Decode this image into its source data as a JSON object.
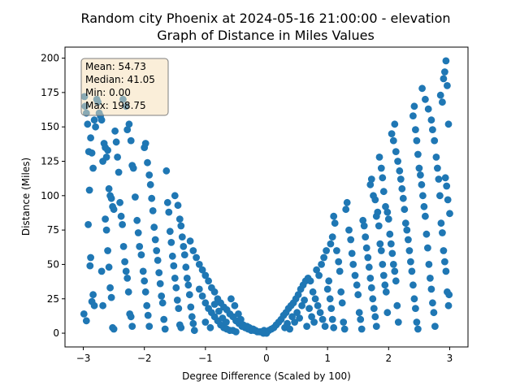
{
  "chart_data": {
    "type": "scatter",
    "title_line1": "Random city Phoenix at 2024-05-16 21:00:00  - elevation",
    "title_line2": "Graph of Distance in Miles Values",
    "xlabel": "Degree Difference (Scaled by 100)",
    "ylabel": "Distance (Miles)",
    "xlim": [
      -3.3,
      3.3
    ],
    "ylim": [
      -10,
      208
    ],
    "xticks": [
      -3,
      -2,
      -1,
      0,
      1,
      2,
      3
    ],
    "yticks": [
      0,
      25,
      50,
      75,
      100,
      125,
      150,
      175,
      200
    ],
    "grid": false,
    "marker_color": "#1f77b4",
    "stats_box": {
      "placement": "top-left",
      "lines": [
        "Mean: 54.73",
        "Median: 41.05",
        "Min: 0.00",
        "Max: 198.75"
      ],
      "background": "#f5deb3",
      "border": "#7f7f7f"
    },
    "points": [
      [
        -2.98,
        172
      ],
      [
        -2.97,
        165
      ],
      [
        -2.95,
        160
      ],
      [
        -2.93,
        152
      ],
      [
        -2.91,
        132
      ],
      [
        -2.88,
        142
      ],
      [
        -2.86,
        131
      ],
      [
        -2.84,
        120
      ],
      [
        -2.82,
        155
      ],
      [
        -2.8,
        150
      ],
      [
        -2.78,
        170
      ],
      [
        -2.76,
        168
      ],
      [
        -2.74,
        160
      ],
      [
        -2.72,
        158
      ],
      [
        -2.7,
        155
      ],
      [
        -2.68,
        125
      ],
      [
        -2.66,
        138
      ],
      [
        -2.64,
        135
      ],
      [
        -2.62,
        128
      ],
      [
        -2.6,
        133
      ],
      [
        -2.58,
        105
      ],
      [
        -2.56,
        100
      ],
      [
        -2.54,
        98
      ],
      [
        -2.52,
        92
      ],
      [
        -2.5,
        90
      ],
      [
        -2.9,
        104
      ],
      [
        -2.92,
        79
      ],
      [
        -2.88,
        55
      ],
      [
        -2.89,
        49
      ],
      [
        -2.86,
        23
      ],
      [
        -2.84,
        28
      ],
      [
        -2.82,
        20
      ],
      [
        -2.99,
        14
      ],
      [
        -2.95,
        9
      ],
      [
        -2.7,
        45
      ],
      [
        -2.68,
        20
      ],
      [
        -2.64,
        83
      ],
      [
        -2.62,
        75
      ],
      [
        -2.6,
        60
      ],
      [
        -2.58,
        48
      ],
      [
        -2.56,
        33
      ],
      [
        -2.54,
        26
      ],
      [
        -2.52,
        4
      ],
      [
        -2.5,
        3
      ],
      [
        -2.48,
        147
      ],
      [
        -2.46,
        139
      ],
      [
        -2.44,
        128
      ],
      [
        -2.42,
        117
      ],
      [
        -2.4,
        95
      ],
      [
        -2.38,
        85
      ],
      [
        -2.36,
        79
      ],
      [
        -2.34,
        63
      ],
      [
        -2.32,
        52
      ],
      [
        -2.3,
        45
      ],
      [
        -2.28,
        40
      ],
      [
        -2.26,
        30
      ],
      [
        -2.24,
        14
      ],
      [
        -2.22,
        12
      ],
      [
        -2.2,
        5
      ],
      [
        -2.3,
        165
      ],
      [
        -2.35,
        170
      ],
      [
        -2.28,
        148
      ],
      [
        -2.25,
        152
      ],
      [
        -2.22,
        140
      ],
      [
        -2.2,
        122
      ],
      [
        -2.18,
        120
      ],
      [
        -2.15,
        99
      ],
      [
        -2.12,
        82
      ],
      [
        -2.1,
        73
      ],
      [
        -2.08,
        63
      ],
      [
        -2.05,
        57
      ],
      [
        -2.02,
        45
      ],
      [
        -2.0,
        38
      ],
      [
        -1.98,
        30
      ],
      [
        -1.96,
        20
      ],
      [
        -1.94,
        13
      ],
      [
        -1.92,
        5
      ],
      [
        -2.0,
        135
      ],
      [
        -1.98,
        138
      ],
      [
        -1.95,
        124
      ],
      [
        -1.92,
        115
      ],
      [
        -1.9,
        108
      ],
      [
        -1.88,
        98
      ],
      [
        -1.86,
        89
      ],
      [
        -1.84,
        77
      ],
      [
        -1.82,
        68
      ],
      [
        -1.8,
        60
      ],
      [
        -1.78,
        53
      ],
      [
        -1.76,
        44
      ],
      [
        -1.74,
        36
      ],
      [
        -1.72,
        27
      ],
      [
        -1.7,
        22
      ],
      [
        -1.68,
        10
      ],
      [
        -1.66,
        3
      ],
      [
        -1.64,
        118
      ],
      [
        -1.62,
        95
      ],
      [
        -1.6,
        88
      ],
      [
        -1.58,
        74
      ],
      [
        -1.56,
        66
      ],
      [
        -1.54,
        56
      ],
      [
        -1.52,
        49
      ],
      [
        -1.5,
        40
      ],
      [
        -1.48,
        33
      ],
      [
        -1.46,
        24
      ],
      [
        -1.44,
        18
      ],
      [
        -1.42,
        6
      ],
      [
        -1.4,
        4
      ],
      [
        -1.5,
        100
      ],
      [
        -1.45,
        93
      ],
      [
        -1.42,
        83
      ],
      [
        -1.4,
        78
      ],
      [
        -1.38,
        70
      ],
      [
        -1.36,
        63
      ],
      [
        -1.34,
        57
      ],
      [
        -1.32,
        48
      ],
      [
        -1.3,
        40
      ],
      [
        -1.28,
        35
      ],
      [
        -1.26,
        28
      ],
      [
        -1.24,
        19
      ],
      [
        -1.22,
        12
      ],
      [
        -1.2,
        7
      ],
      [
        -1.18,
        2
      ],
      [
        -1.25,
        67
      ],
      [
        -1.2,
        60
      ],
      [
        -1.15,
        55
      ],
      [
        -1.1,
        50
      ],
      [
        -1.05,
        46
      ],
      [
        -1.0,
        42
      ],
      [
        -0.95,
        38
      ],
      [
        -0.9,
        33
      ],
      [
        -0.85,
        30
      ],
      [
        -0.8,
        25
      ],
      [
        -0.75,
        22
      ],
      [
        -0.7,
        19
      ],
      [
        -0.65,
        17
      ],
      [
        -0.6,
        14
      ],
      [
        -0.55,
        12
      ],
      [
        -0.5,
        9
      ],
      [
        -0.45,
        7
      ],
      [
        -0.4,
        5
      ],
      [
        -0.35,
        4
      ],
      [
        -0.3,
        3
      ],
      [
        -0.25,
        2
      ],
      [
        -0.2,
        2
      ],
      [
        -0.15,
        1
      ],
      [
        -0.1,
        1
      ],
      [
        -0.05,
        0
      ],
      [
        0.0,
        0
      ],
      [
        -1.1,
        32
      ],
      [
        -1.05,
        27
      ],
      [
        -1.0,
        22
      ],
      [
        -0.95,
        18
      ],
      [
        -0.9,
        15
      ],
      [
        -0.85,
        12
      ],
      [
        -0.8,
        9
      ],
      [
        -0.75,
        6
      ],
      [
        -0.7,
        4
      ],
      [
        -0.65,
        3
      ],
      [
        -0.6,
        2
      ],
      [
        -0.55,
        2
      ],
      [
        -0.5,
        1
      ],
      [
        -1.0,
        8
      ],
      [
        -0.92,
        4
      ],
      [
        -0.85,
        21
      ],
      [
        -0.78,
        16
      ],
      [
        -0.72,
        11
      ],
      [
        -0.66,
        8
      ],
      [
        -0.58,
        25
      ],
      [
        -0.52,
        20
      ],
      [
        -0.46,
        14
      ],
      [
        -0.42,
        10
      ],
      [
        -0.38,
        6
      ],
      [
        -0.32,
        5
      ],
      [
        -0.28,
        4
      ],
      [
        -0.22,
        3
      ],
      [
        -0.18,
        2
      ],
      [
        -0.12,
        1
      ],
      [
        -0.08,
        1
      ],
      [
        -0.04,
        2
      ],
      [
        0.04,
        2
      ],
      [
        0.08,
        3
      ],
      [
        0.12,
        4
      ],
      [
        0.16,
        6
      ],
      [
        0.2,
        8
      ],
      [
        0.24,
        10
      ],
      [
        0.28,
        13
      ],
      [
        0.32,
        15
      ],
      [
        0.36,
        18
      ],
      [
        0.4,
        20
      ],
      [
        0.44,
        22
      ],
      [
        0.48,
        25
      ],
      [
        0.52,
        28
      ],
      [
        0.56,
        32
      ],
      [
        0.6,
        35
      ],
      [
        0.64,
        38
      ],
      [
        0.68,
        40
      ],
      [
        0.72,
        38
      ],
      [
        0.76,
        30
      ],
      [
        0.8,
        25
      ],
      [
        0.84,
        20
      ],
      [
        0.88,
        15
      ],
      [
        0.92,
        10
      ],
      [
        0.96,
        5
      ],
      [
        0.3,
        4
      ],
      [
        0.34,
        7
      ],
      [
        0.38,
        3
      ],
      [
        0.42,
        12
      ],
      [
        0.46,
        8
      ],
      [
        0.5,
        15
      ],
      [
        0.54,
        11
      ],
      [
        0.58,
        20
      ],
      [
        0.62,
        24
      ],
      [
        0.66,
        5
      ],
      [
        0.7,
        18
      ],
      [
        0.74,
        12
      ],
      [
        0.78,
        8
      ],
      [
        0.82,
        46
      ],
      [
        0.86,
        42
      ],
      [
        0.9,
        50
      ],
      [
        0.94,
        55
      ],
      [
        0.98,
        60
      ],
      [
        1.0,
        32
      ],
      [
        1.02,
        38
      ],
      [
        1.04,
        25
      ],
      [
        1.06,
        18
      ],
      [
        1.08,
        10
      ],
      [
        1.1,
        4
      ],
      [
        1.05,
        65
      ],
      [
        1.08,
        70
      ],
      [
        1.1,
        85
      ],
      [
        1.12,
        80
      ],
      [
        1.15,
        60
      ],
      [
        1.18,
        52
      ],
      [
        1.2,
        45
      ],
      [
        1.22,
        30
      ],
      [
        1.24,
        22
      ],
      [
        1.26,
        8
      ],
      [
        1.28,
        3
      ],
      [
        1.3,
        90
      ],
      [
        1.32,
        95
      ],
      [
        1.35,
        75
      ],
      [
        1.38,
        68
      ],
      [
        1.4,
        58
      ],
      [
        1.42,
        50
      ],
      [
        1.45,
        42
      ],
      [
        1.48,
        35
      ],
      [
        1.5,
        28
      ],
      [
        1.52,
        15
      ],
      [
        1.54,
        10
      ],
      [
        1.56,
        3
      ],
      [
        1.58,
        82
      ],
      [
        1.6,
        78
      ],
      [
        1.62,
        70
      ],
      [
        1.64,
        62
      ],
      [
        1.66,
        55
      ],
      [
        1.68,
        48
      ],
      [
        1.7,
        40
      ],
      [
        1.72,
        33
      ],
      [
        1.74,
        25
      ],
      [
        1.76,
        18
      ],
      [
        1.78,
        12
      ],
      [
        1.8,
        5
      ],
      [
        1.7,
        108
      ],
      [
        1.72,
        112
      ],
      [
        1.75,
        100
      ],
      [
        1.78,
        97
      ],
      [
        1.8,
        85
      ],
      [
        1.82,
        88
      ],
      [
        1.84,
        78
      ],
      [
        1.86,
        65
      ],
      [
        1.88,
        60
      ],
      [
        1.9,
        50
      ],
      [
        1.92,
        42
      ],
      [
        1.94,
        35
      ],
      [
        1.96,
        30
      ],
      [
        1.98,
        15
      ],
      [
        1.85,
        128
      ],
      [
        1.88,
        120
      ],
      [
        1.9,
        113
      ],
      [
        1.92,
        103
      ],
      [
        1.95,
        92
      ],
      [
        1.98,
        88
      ],
      [
        2.0,
        83
      ],
      [
        2.02,
        72
      ],
      [
        2.04,
        65
      ],
      [
        2.06,
        58
      ],
      [
        2.08,
        50
      ],
      [
        2.1,
        45
      ],
      [
        2.12,
        38
      ],
      [
        2.14,
        20
      ],
      [
        2.16,
        8
      ],
      [
        2.05,
        145
      ],
      [
        2.08,
        140
      ],
      [
        2.1,
        152
      ],
      [
        2.12,
        132
      ],
      [
        2.15,
        125
      ],
      [
        2.18,
        118
      ],
      [
        2.2,
        112
      ],
      [
        2.22,
        105
      ],
      [
        2.24,
        98
      ],
      [
        2.26,
        90
      ],
      [
        2.28,
        80
      ],
      [
        2.3,
        75
      ],
      [
        2.32,
        68
      ],
      [
        2.34,
        60
      ],
      [
        2.36,
        52
      ],
      [
        2.38,
        45
      ],
      [
        2.4,
        35
      ],
      [
        2.42,
        25
      ],
      [
        2.44,
        18
      ],
      [
        2.46,
        8
      ],
      [
        2.48,
        3
      ],
      [
        2.4,
        158
      ],
      [
        2.42,
        165
      ],
      [
        2.44,
        148
      ],
      [
        2.46,
        140
      ],
      [
        2.48,
        130
      ],
      [
        2.5,
        120
      ],
      [
        2.52,
        115
      ],
      [
        2.54,
        108
      ],
      [
        2.56,
        100
      ],
      [
        2.58,
        92
      ],
      [
        2.6,
        85
      ],
      [
        2.62,
        72
      ],
      [
        2.64,
        62
      ],
      [
        2.66,
        50
      ],
      [
        2.68,
        40
      ],
      [
        2.7,
        32
      ],
      [
        2.72,
        22
      ],
      [
        2.74,
        15
      ],
      [
        2.76,
        5
      ],
      [
        2.55,
        178
      ],
      [
        2.6,
        170
      ],
      [
        2.65,
        163
      ],
      [
        2.7,
        155
      ],
      [
        2.72,
        148
      ],
      [
        2.75,
        140
      ],
      [
        2.78,
        128
      ],
      [
        2.8,
        120
      ],
      [
        2.82,
        112
      ],
      [
        2.84,
        100
      ],
      [
        2.86,
        80
      ],
      [
        2.88,
        73
      ],
      [
        2.9,
        60
      ],
      [
        2.92,
        52
      ],
      [
        2.94,
        45
      ],
      [
        2.96,
        30
      ],
      [
        2.98,
        20
      ],
      [
        2.85,
        173
      ],
      [
        2.88,
        168
      ],
      [
        2.9,
        185
      ],
      [
        2.92,
        190
      ],
      [
        2.94,
        198
      ],
      [
        2.96,
        180
      ],
      [
        2.98,
        152
      ],
      [
        3.0,
        87
      ],
      [
        2.93,
        113
      ],
      [
        2.95,
        107
      ],
      [
        2.97,
        97
      ],
      [
        2.99,
        28
      ]
    ]
  }
}
